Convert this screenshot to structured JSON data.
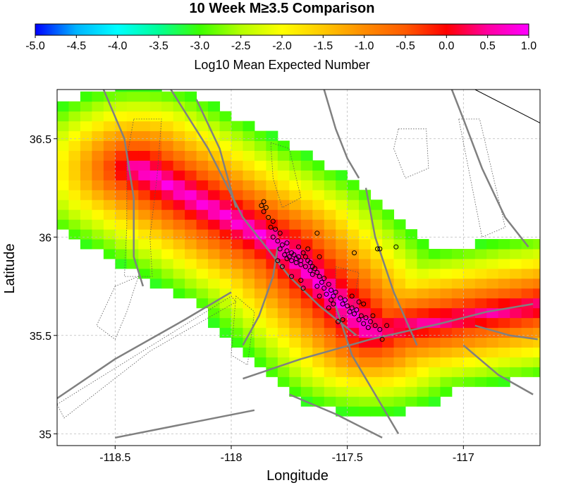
{
  "chart_data": {
    "type": "heatmap",
    "title": "10 Week M≥3.5 Comparison",
    "colorbar": {
      "label": "Log10 Mean Expected Number",
      "range": [
        -5.0,
        1.0
      ],
      "ticks": [
        "-5.0",
        "-4.5",
        "-4.0",
        "-3.5",
        "-3.0",
        "-2.5",
        "-2.0",
        "-1.5",
        "-1.0",
        "-0.5",
        "0.0",
        "0.5",
        "1.0"
      ],
      "colors": [
        "#0000ff",
        "#00b4ff",
        "#00ffff",
        "#00ff96",
        "#3cff00",
        "#b4ff00",
        "#ffff00",
        "#ffc800",
        "#ff8c00",
        "#ff5a00",
        "#ff0000",
        "#ff00a0",
        "#ff00ff"
      ]
    },
    "xlabel": "Longitude",
    "ylabel": "Latitude",
    "xlim": [
      -118.75,
      -116.67
    ],
    "ylim": [
      34.94,
      36.75
    ],
    "xticks": [
      -118.5,
      -118,
      -117.5,
      -117
    ],
    "yticks": [
      35,
      35.5,
      36,
      36.5
    ],
    "xtick_labels": [
      "-118.5",
      "-118",
      "-117.5",
      "-117"
    ],
    "ytick_labels": [
      "35",
      "35.5",
      "36",
      "36.5"
    ],
    "grid": true,
    "model": {
      "description_ridge": [
        [
          -118.4,
          36.35
        ],
        [
          -117.78,
          35.95
        ],
        [
          -117.4,
          35.52
        ]
      ],
      "peak_log10": 1.0,
      "edge_log10": -3.1,
      "cell_size_deg": 0.05
    },
    "faults": [
      [
        [
          -118.55,
          36.75
        ],
        [
          -118.46,
          36.5
        ],
        [
          -118.42,
          36.2
        ],
        [
          -118.42,
          35.9
        ],
        [
          -118.38,
          35.75
        ]
      ],
      [
        [
          -118.26,
          36.75
        ],
        [
          -118.1,
          36.45
        ],
        [
          -117.95,
          36.1
        ],
        [
          -117.75,
          35.8
        ],
        [
          -117.62,
          35.65
        ],
        [
          -117.46,
          35.5
        ]
      ],
      [
        [
          -118.15,
          36.7
        ],
        [
          -118.05,
          36.45
        ],
        [
          -117.98,
          36.15
        ]
      ],
      [
        [
          -118.75,
          35.18
        ],
        [
          -118.5,
          35.38
        ],
        [
          -118.2,
          35.58
        ],
        [
          -118.0,
          35.72
        ]
      ],
      [
        [
          -117.95,
          35.28
        ],
        [
          -117.7,
          35.38
        ],
        [
          -117.4,
          35.48
        ],
        [
          -117.1,
          35.56
        ],
        [
          -116.9,
          35.62
        ],
        [
          -116.7,
          35.66
        ]
      ],
      [
        [
          -117.42,
          36.25
        ],
        [
          -117.38,
          36.0
        ],
        [
          -117.3,
          35.72
        ],
        [
          -117.2,
          35.45
        ]
      ],
      [
        [
          -117.05,
          36.75
        ],
        [
          -117.0,
          36.6
        ],
        [
          -116.92,
          36.35
        ],
        [
          -116.82,
          36.1
        ],
        [
          -116.72,
          35.95
        ]
      ],
      [
        [
          -117.55,
          35.65
        ],
        [
          -117.48,
          35.4
        ],
        [
          -117.38,
          35.2
        ],
        [
          -117.28,
          35.0
        ]
      ],
      [
        [
          -117.75,
          35.2
        ],
        [
          -117.55,
          35.1
        ],
        [
          -117.35,
          34.98
        ]
      ],
      [
        [
          -117.0,
          35.45
        ],
        [
          -116.85,
          35.3
        ],
        [
          -116.7,
          35.2
        ]
      ],
      [
        [
          -118.5,
          34.98
        ],
        [
          -118.2,
          35.05
        ],
        [
          -117.9,
          35.12
        ]
      ],
      [
        [
          -117.6,
          36.75
        ],
        [
          -117.55,
          36.55
        ],
        [
          -117.5,
          36.4
        ],
        [
          -117.45,
          36.3
        ]
      ],
      [
        [
          -117.8,
          35.95
        ],
        [
          -117.82,
          35.8
        ],
        [
          -117.88,
          35.6
        ],
        [
          -117.95,
          35.45
        ]
      ],
      [
        [
          -116.95,
          35.55
        ],
        [
          -116.8,
          35.5
        ],
        [
          -116.68,
          35.48
        ]
      ]
    ],
    "thin_faults": [
      [
        [
          -116.95,
          36.75
        ],
        [
          -116.67,
          36.58
        ]
      ]
    ],
    "dotted_regions": [
      [
        [
          -118.42,
          36.6
        ],
        [
          -118.3,
          36.6
        ],
        [
          -118.32,
          36.3
        ],
        [
          -118.35,
          36.0
        ],
        [
          -118.34,
          35.8
        ],
        [
          -118.46,
          35.8
        ],
        [
          -118.45,
          36.05
        ],
        [
          -118.45,
          36.4
        ]
      ],
      [
        [
          -117.02,
          36.6
        ],
        [
          -116.93,
          36.6
        ],
        [
          -116.87,
          36.3
        ],
        [
          -116.82,
          36.05
        ],
        [
          -116.92,
          36.0
        ],
        [
          -116.97,
          36.3
        ]
      ],
      [
        [
          -117.28,
          36.55
        ],
        [
          -117.16,
          36.55
        ],
        [
          -117.15,
          36.35
        ],
        [
          -117.25,
          36.3
        ],
        [
          -117.3,
          36.45
        ]
      ],
      [
        [
          -118.5,
          35.75
        ],
        [
          -118.4,
          35.8
        ],
        [
          -118.45,
          35.62
        ],
        [
          -118.5,
          35.48
        ],
        [
          -118.58,
          35.55
        ]
      ],
      [
        [
          -118.75,
          35.15
        ],
        [
          -118.3,
          35.48
        ],
        [
          -118.0,
          35.7
        ],
        [
          -117.98,
          35.67
        ],
        [
          -118.35,
          35.42
        ],
        [
          -118.72,
          35.08
        ]
      ],
      [
        [
          -117.83,
          36.48
        ],
        [
          -117.75,
          36.45
        ],
        [
          -117.7,
          36.2
        ],
        [
          -117.78,
          36.15
        ],
        [
          -117.82,
          36.3
        ]
      ],
      [
        [
          -117.55,
          35.85
        ],
        [
          -117.45,
          35.82
        ],
        [
          -117.48,
          35.6
        ],
        [
          -117.55,
          35.6
        ]
      ],
      [
        [
          -117.98,
          35.7
        ],
        [
          -117.9,
          35.62
        ],
        [
          -117.93,
          35.35
        ],
        [
          -118.0,
          35.4
        ]
      ]
    ],
    "events": [
      [
        -117.86,
        36.18
      ],
      [
        -117.87,
        36.16
      ],
      [
        -117.85,
        36.15
      ],
      [
        -117.86,
        36.13
      ],
      [
        -117.84,
        36.1
      ],
      [
        -117.82,
        36.08
      ],
      [
        -117.83,
        36.05
      ],
      [
        -117.81,
        36.04
      ],
      [
        -117.79,
        36.02
      ],
      [
        -117.82,
        36.0
      ],
      [
        -117.8,
        35.98
      ],
      [
        -117.78,
        35.96
      ],
      [
        -117.76,
        35.93
      ],
      [
        -117.74,
        35.92
      ],
      [
        -117.77,
        35.91
      ],
      [
        -117.75,
        35.9
      ],
      [
        -117.73,
        35.91
      ],
      [
        -117.71,
        35.9
      ],
      [
        -117.72,
        35.89
      ],
      [
        -117.7,
        35.88
      ],
      [
        -117.74,
        35.88
      ],
      [
        -117.76,
        35.89
      ],
      [
        -117.69,
        35.92
      ],
      [
        -117.68,
        35.9
      ],
      [
        -117.67,
        35.88
      ],
      [
        -117.66,
        35.87
      ],
      [
        -117.7,
        35.86
      ],
      [
        -117.68,
        35.85
      ],
      [
        -117.72,
        35.87
      ],
      [
        -117.65,
        35.85
      ],
      [
        -117.64,
        35.84
      ],
      [
        -117.66,
        35.83
      ],
      [
        -117.63,
        35.82
      ],
      [
        -117.62,
        35.8
      ],
      [
        -117.65,
        35.81
      ],
      [
        -117.6,
        35.79
      ],
      [
        -117.61,
        35.77
      ],
      [
        -117.58,
        35.76
      ],
      [
        -117.6,
        35.74
      ],
      [
        -117.57,
        35.73
      ],
      [
        -117.55,
        35.72
      ],
      [
        -117.56,
        35.7
      ],
      [
        -117.53,
        35.69
      ],
      [
        -117.51,
        35.68
      ],
      [
        -117.52,
        35.66
      ],
      [
        -117.5,
        35.65
      ],
      [
        -117.48,
        35.64
      ],
      [
        -117.46,
        35.63
      ],
      [
        -117.49,
        35.62
      ],
      [
        -117.47,
        35.61
      ],
      [
        -117.44,
        35.6
      ],
      [
        -117.42,
        35.59
      ],
      [
        -117.45,
        35.58
      ],
      [
        -117.4,
        35.57
      ],
      [
        -117.43,
        35.56
      ],
      [
        -117.38,
        35.55
      ],
      [
        -117.41,
        35.54
      ],
      [
        -117.36,
        35.53
      ],
      [
        -117.39,
        35.6
      ],
      [
        -117.56,
        35.66
      ],
      [
        -117.58,
        35.64
      ],
      [
        -117.54,
        35.57
      ],
      [
        -117.52,
        35.58
      ],
      [
        -117.62,
        35.7
      ],
      [
        -117.7,
        35.78
      ],
      [
        -117.74,
        35.8
      ],
      [
        -117.69,
        35.74
      ],
      [
        -117.63,
        35.75
      ],
      [
        -117.59,
        35.71
      ],
      [
        -117.48,
        35.7
      ],
      [
        -117.8,
        35.88
      ],
      [
        -117.78,
        35.85
      ],
      [
        -117.67,
        35.94
      ],
      [
        -117.62,
        35.9
      ],
      [
        -117.79,
        35.94
      ],
      [
        -117.76,
        35.97
      ],
      [
        -117.71,
        35.95
      ],
      [
        -117.47,
        35.92
      ],
      [
        -117.37,
        35.94
      ],
      [
        -117.36,
        35.94
      ],
      [
        -117.29,
        35.95
      ],
      [
        -117.35,
        35.48
      ],
      [
        -117.63,
        36.02
      ],
      [
        -117.43,
        35.66
      ],
      [
        -117.45,
        35.67
      ],
      [
        -117.33,
        35.55
      ],
      [
        -117.57,
        35.68
      ]
    ]
  }
}
